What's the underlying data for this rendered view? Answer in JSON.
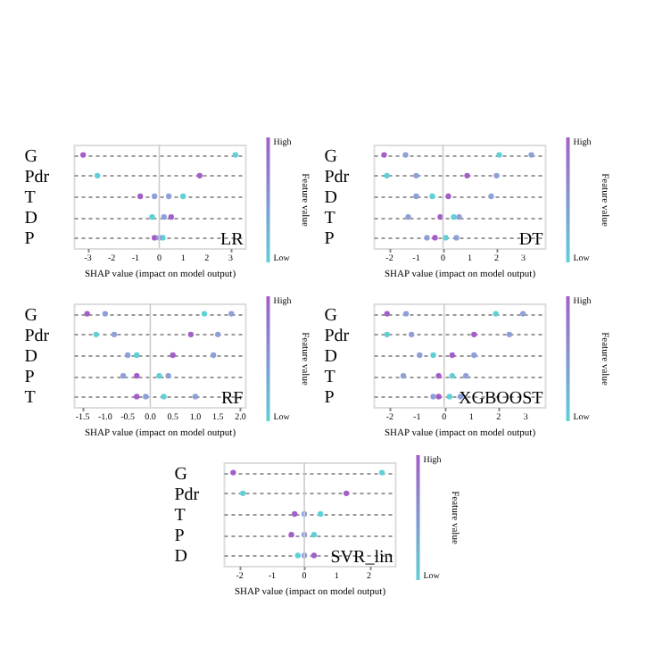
{
  "chart_data": [
    {
      "type": "scatter",
      "orientation": "horizontal",
      "title": "LR",
      "xlabel": "SHAP value (impact on model output)",
      "clabel": "Feature value",
      "annotations": [
        "High",
        "Low"
      ],
      "categories": [
        "G",
        "Pdr",
        "T",
        "D",
        "P"
      ],
      "xlim": [
        -3.6,
        3.6
      ],
      "xticks": [
        -3,
        -2,
        -1,
        0,
        1,
        2,
        3
      ],
      "grid": "y",
      "ref_lines": [
        {
          "axis": "x",
          "value": 0,
          "color": "#cccccc"
        }
      ],
      "series": [
        {
          "color": "#a45ec8",
          "values": [
            -3.2,
            1.7,
            -0.8,
            0.5,
            -0.2
          ]
        },
        {
          "color": "#5fd0d6",
          "values": [
            3.2,
            -2.6,
            1.0,
            -0.3,
            0.15
          ]
        },
        {
          "color": "#8fa0d8",
          "values": [
            null,
            null,
            -0.2,
            0.2,
            0.0
          ]
        },
        {
          "color": "#8fa0d8",
          "values": [
            null,
            null,
            0.4,
            null,
            null
          ]
        }
      ]
    },
    {
      "type": "scatter",
      "orientation": "horizontal",
      "title": "DT",
      "xlabel": "SHAP value (impact on model output)",
      "clabel": "Feature value",
      "annotations": [
        "High",
        "Low"
      ],
      "categories": [
        "G",
        "Pdr",
        "D",
        "T",
        "P"
      ],
      "xlim": [
        -2.6,
        3.8
      ],
      "xticks": [
        -2,
        -1,
        0,
        1,
        2,
        3
      ],
      "grid": "y",
      "ref_lines": [
        {
          "axis": "x",
          "value": 0,
          "color": "#cccccc"
        }
      ],
      "series": [
        {
          "color": "#a45ec8",
          "values": [
            -2.2,
            0.9,
            0.2,
            -0.1,
            -0.3
          ]
        },
        {
          "color": "#5fd0d6",
          "values": [
            2.1,
            -2.1,
            -0.4,
            0.4,
            0.1
          ]
        },
        {
          "color": "#8fa0d8",
          "values": [
            -1.4,
            -1.0,
            -1.0,
            -1.3,
            -0.6
          ]
        },
        {
          "color": "#8fa0d8",
          "values": [
            3.3,
            2.0,
            1.8,
            0.6,
            0.5
          ]
        }
      ]
    },
    {
      "type": "scatter",
      "orientation": "horizontal",
      "title": "RF",
      "xlabel": "SHAP value (impact on model output)",
      "clabel": "Feature value",
      "annotations": [
        "High",
        "Low"
      ],
      "categories": [
        "G",
        "Pdr",
        "D",
        "P",
        "T"
      ],
      "xlim": [
        -1.7,
        2.1
      ],
      "xticks": [
        {
          "value": -1.5,
          "label": "-1.5"
        },
        {
          "value": -1.0,
          "label": "-1.0"
        },
        {
          "value": -0.5,
          "label": "-0.5"
        },
        {
          "value": 0,
          "label": "0.0"
        },
        {
          "value": 0.5,
          "label": "0.5"
        },
        {
          "value": 1.0,
          "label": "1.0"
        },
        {
          "value": 1.5,
          "label": "1.5"
        },
        {
          "value": 2.0,
          "label": "2.0"
        }
      ],
      "grid": "y",
      "ref_lines": [
        {
          "axis": "x",
          "value": 0,
          "color": "#cccccc"
        }
      ],
      "series": [
        {
          "color": "#a45ec8",
          "values": [
            -1.4,
            0.9,
            0.5,
            -0.3,
            -0.3
          ]
        },
        {
          "color": "#5fd0d6",
          "values": [
            1.2,
            -1.2,
            -0.3,
            0.2,
            0.3
          ]
        },
        {
          "color": "#8fa0d8",
          "values": [
            -1.0,
            -0.8,
            -0.5,
            -0.6,
            -0.1
          ]
        },
        {
          "color": "#8fa0d8",
          "values": [
            1.8,
            1.5,
            1.4,
            0.4,
            1.0
          ]
        }
      ]
    },
    {
      "type": "scatter",
      "orientation": "horizontal",
      "title": "XGBOOST",
      "xlabel": "SHAP value (impact on model output)",
      "clabel": "Feature value",
      "annotations": [
        "High",
        "Low"
      ],
      "categories": [
        "G",
        "Pdr",
        "D",
        "T",
        "P"
      ],
      "xlim": [
        -2.6,
        3.7
      ],
      "xticks": [
        -2,
        -1,
        0,
        1,
        2,
        3
      ],
      "grid": "y",
      "ref_lines": [
        {
          "axis": "x",
          "value": 0,
          "color": "#cccccc"
        }
      ],
      "series": [
        {
          "color": "#a45ec8",
          "values": [
            -2.1,
            1.1,
            0.3,
            -0.2,
            -0.2
          ]
        },
        {
          "color": "#5fd0d6",
          "values": [
            1.9,
            -2.1,
            -0.4,
            0.3,
            0.2
          ]
        },
        {
          "color": "#8fa0d8",
          "values": [
            -1.4,
            -1.2,
            -0.9,
            -1.5,
            -0.4
          ]
        },
        {
          "color": "#8fa0d8",
          "values": [
            2.9,
            2.4,
            1.1,
            0.8,
            0.6
          ]
        }
      ]
    },
    {
      "type": "scatter",
      "orientation": "horizontal",
      "title": "SVR_lin",
      "xlabel": "SHAP value (impact on model output)",
      "clabel": "Feature value",
      "annotations": [
        "High",
        "Low"
      ],
      "categories": [
        "G",
        "Pdr",
        "T",
        "P",
        "D"
      ],
      "xlim": [
        -2.5,
        2.8
      ],
      "xticks": [
        -2,
        -1,
        0,
        1,
        2
      ],
      "grid": "y",
      "ref_lines": [
        {
          "axis": "x",
          "value": 0,
          "color": "#cccccc"
        }
      ],
      "series": [
        {
          "color": "#a45ec8",
          "values": [
            -2.2,
            1.3,
            -0.3,
            -0.4,
            0.3
          ]
        },
        {
          "color": "#5fd0d6",
          "values": [
            2.4,
            -1.9,
            0.5,
            0.3,
            -0.2
          ]
        },
        {
          "color": "#8fa0d8",
          "values": [
            null,
            null,
            0.0,
            0.0,
            0.0
          ]
        }
      ]
    }
  ]
}
